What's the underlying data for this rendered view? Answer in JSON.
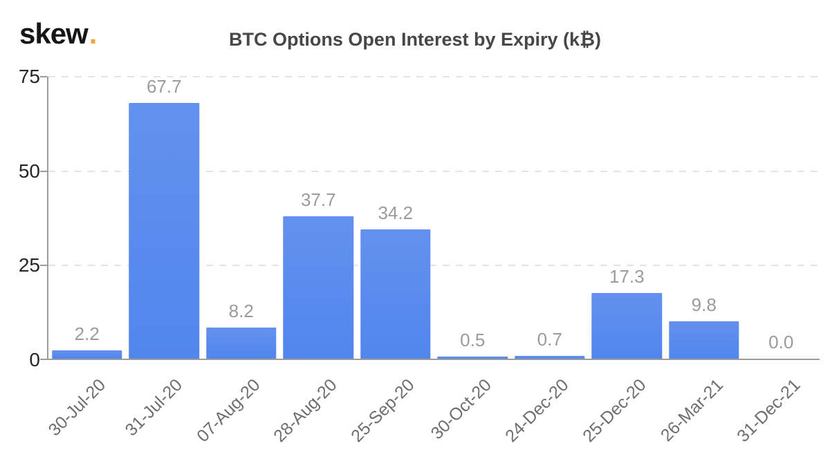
{
  "header": {
    "logo_text": "skew",
    "logo_dot": ".",
    "title": "BTC Options Open Interest by Expiry (k₿)"
  },
  "chart_data": {
    "type": "bar",
    "title": "BTC Options Open Interest by Expiry (k₿)",
    "categories": [
      "30-Jul-20",
      "31-Jul-20",
      "07-Aug-20",
      "28-Aug-20",
      "25-Sep-20",
      "30-Oct-20",
      "24-Dec-20",
      "25-Dec-20",
      "26-Mar-21",
      "31-Dec-21"
    ],
    "values": [
      2.2,
      67.7,
      8.2,
      37.7,
      34.2,
      0.5,
      0.7,
      17.3,
      9.8,
      0.0
    ],
    "value_labels": [
      "2.2",
      "67.7",
      "8.2",
      "37.7",
      "34.2",
      "0.5",
      "0.7",
      "17.3",
      "9.8",
      "0.0"
    ],
    "xlabel": "",
    "ylabel": "",
    "yticks": [
      0,
      25,
      50,
      75
    ],
    "ylim": [
      0,
      75
    ],
    "grid": "horizontal-dashed",
    "legend": "none",
    "bar_gap_fraction": 0.09,
    "colors": {
      "background": "#ffffff",
      "bar_top": "#6391ef",
      "bar_bottom": "#5186ed",
      "value_label": "#9b9b9b",
      "x_label": "#6e6e6e",
      "y_label": "#262626",
      "title": "#474747",
      "axis": "#9c9c9c",
      "grid": "#e4e4e4",
      "logo": "#161616",
      "logo_dot": "#f0a63c"
    }
  }
}
